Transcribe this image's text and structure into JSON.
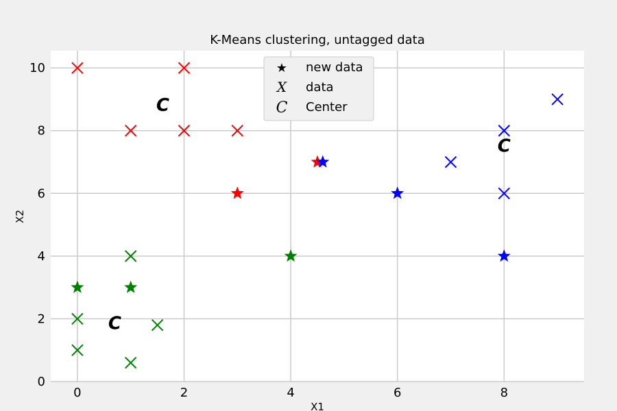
{
  "chart_data": {
    "type": "scatter",
    "title": "K-Means clustering, untagged data",
    "xlabel": "X1",
    "ylabel": "X2",
    "xlim": [
      -0.5,
      9.5
    ],
    "ylim": [
      0,
      10.55
    ],
    "xticks": [
      0,
      2,
      4,
      6,
      8
    ],
    "yticks": [
      0,
      2,
      4,
      6,
      8,
      10
    ],
    "grid": true,
    "legend_position": "top-center",
    "colors": {
      "red": "#ff0000",
      "green": "#008000",
      "blue": "#0000ff",
      "black": "#000000"
    },
    "series": [
      {
        "name": "data",
        "marker": "x",
        "points": [
          {
            "x": 0,
            "y": 10,
            "color": "red"
          },
          {
            "x": 2,
            "y": 10,
            "color": "red"
          },
          {
            "x": 1,
            "y": 8,
            "color": "red"
          },
          {
            "x": 2,
            "y": 8,
            "color": "red"
          },
          {
            "x": 3,
            "y": 8,
            "color": "red"
          },
          {
            "x": 1,
            "y": 4,
            "color": "green"
          },
          {
            "x": 0,
            "y": 2,
            "color": "green"
          },
          {
            "x": 0,
            "y": 1,
            "color": "green"
          },
          {
            "x": 1,
            "y": 0.6,
            "color": "green"
          },
          {
            "x": 1.5,
            "y": 1.8,
            "color": "green"
          },
          {
            "x": 9,
            "y": 9,
            "color": "blue"
          },
          {
            "x": 8,
            "y": 8,
            "color": "blue"
          },
          {
            "x": 7,
            "y": 7,
            "color": "blue"
          },
          {
            "x": 8,
            "y": 6,
            "color": "blue"
          }
        ]
      },
      {
        "name": "new data",
        "marker": "star",
        "points": [
          {
            "x": 4.5,
            "y": 7,
            "color": "red"
          },
          {
            "x": 3,
            "y": 6,
            "color": "red"
          },
          {
            "x": 4.6,
            "y": 7,
            "color": "blue"
          },
          {
            "x": 6,
            "y": 6,
            "color": "blue"
          },
          {
            "x": 8,
            "y": 4,
            "color": "blue"
          },
          {
            "x": 4,
            "y": 4,
            "color": "green"
          },
          {
            "x": 0,
            "y": 3,
            "color": "green"
          },
          {
            "x": 1,
            "y": 3,
            "color": "green"
          }
        ]
      },
      {
        "name": "Center",
        "marker": "C",
        "points": [
          {
            "x": 1.6,
            "y": 8.8
          },
          {
            "x": 0.7,
            "y": 1.85
          },
          {
            "x": 8,
            "y": 7.5
          }
        ]
      }
    ],
    "legend": [
      {
        "label": "new data",
        "symbol": "★"
      },
      {
        "label": "data",
        "symbol": "X"
      },
      {
        "label": "Center",
        "symbol": "C"
      }
    ]
  }
}
